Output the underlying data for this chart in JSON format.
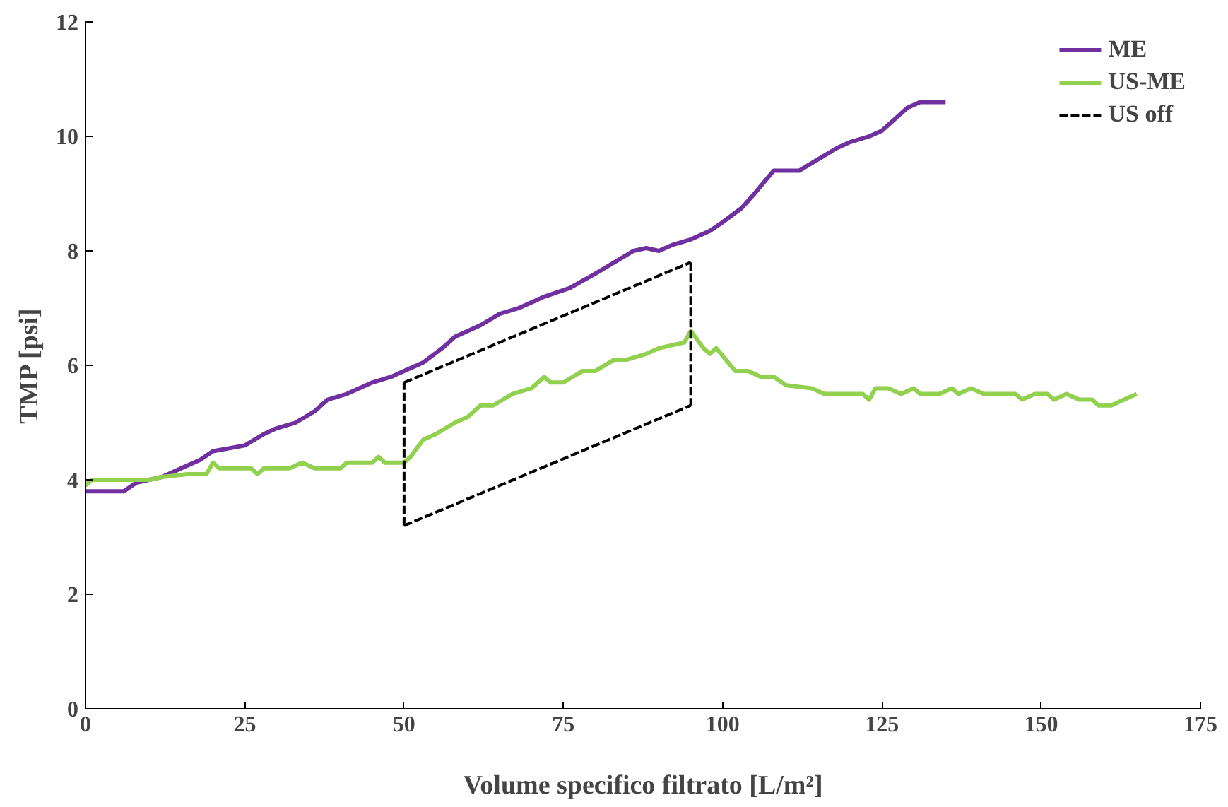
{
  "chart_data": {
    "type": "line",
    "xlabel": "Volume specifico filtrato [L/m²]",
    "ylabel": "TMP [psi]",
    "xlim": [
      0,
      175
    ],
    "xticks": [
      0,
      25,
      50,
      75,
      100,
      125,
      150,
      175
    ],
    "ylim": [
      0,
      12
    ],
    "yticks": [
      0,
      2,
      4,
      6,
      8,
      10,
      12
    ],
    "grid": false,
    "legend": "top right",
    "line_style": "solid",
    "marker": "none",
    "series": [
      {
        "name": "ME",
        "color": "#7030a0",
        "x": [
          0,
          6,
          8,
          12,
          15,
          18,
          20,
          25,
          28,
          30,
          33,
          36,
          38,
          41,
          45,
          48,
          50,
          53,
          56,
          58,
          62,
          65,
          68,
          72,
          76,
          80,
          83,
          86,
          88,
          90,
          92,
          95,
          98,
          100,
          103,
          105,
          108,
          112,
          115,
          118,
          120,
          123,
          125,
          127,
          129,
          131,
          135
        ],
        "values": [
          3.8,
          3.8,
          3.95,
          4.05,
          4.2,
          4.35,
          4.5,
          4.6,
          4.8,
          4.9,
          5.0,
          5.2,
          5.4,
          5.5,
          5.7,
          5.8,
          5.9,
          6.05,
          6.3,
          6.5,
          6.7,
          6.9,
          7.0,
          7.2,
          7.35,
          7.6,
          7.8,
          8.0,
          8.05,
          8.0,
          8.1,
          8.2,
          8.35,
          8.5,
          8.75,
          9.0,
          9.4,
          9.4,
          9.6,
          9.8,
          9.9,
          10.0,
          10.1,
          10.3,
          10.5,
          10.6,
          10.6
        ]
      },
      {
        "name": "US-ME",
        "color": "#92d050",
        "x": [
          0,
          1,
          10,
          12,
          16,
          19,
          20,
          21,
          26,
          27,
          28,
          32,
          34,
          36,
          40,
          41,
          45,
          46,
          47,
          50,
          51,
          53,
          55,
          58,
          60,
          62,
          64,
          67,
          70,
          72,
          73,
          75,
          78,
          80,
          83,
          85,
          88,
          90,
          92,
          94,
          95,
          97,
          98,
          99,
          102,
          104,
          106,
          108,
          110,
          114,
          116,
          122,
          123,
          124,
          126,
          128,
          130,
          131,
          134,
          136,
          137,
          139,
          141,
          146,
          147,
          149,
          151,
          152,
          154,
          156,
          158,
          159,
          161,
          163,
          165
        ],
        "values": [
          3.9,
          4.0,
          4.0,
          4.05,
          4.1,
          4.1,
          4.3,
          4.2,
          4.2,
          4.1,
          4.2,
          4.2,
          4.3,
          4.2,
          4.2,
          4.3,
          4.3,
          4.4,
          4.3,
          4.3,
          4.4,
          4.7,
          4.8,
          5.0,
          5.1,
          5.3,
          5.3,
          5.5,
          5.6,
          5.8,
          5.7,
          5.7,
          5.9,
          5.9,
          6.1,
          6.1,
          6.2,
          6.3,
          6.35,
          6.4,
          6.6,
          6.3,
          6.2,
          6.3,
          5.9,
          5.9,
          5.8,
          5.8,
          5.65,
          5.6,
          5.5,
          5.5,
          5.4,
          5.6,
          5.6,
          5.5,
          5.6,
          5.5,
          5.5,
          5.6,
          5.5,
          5.6,
          5.5,
          5.5,
          5.4,
          5.5,
          5.5,
          5.4,
          5.5,
          5.4,
          5.4,
          5.3,
          5.3,
          5.4,
          5.5
        ]
      },
      {
        "name": "US off",
        "color": "#000000",
        "line_style": "dashed",
        "x": [
          50,
          95
        ],
        "values": [
          5.7,
          7.8
        ]
      },
      {
        "color": "#000000",
        "line_style": "dashed",
        "x": [
          95,
          95
        ],
        "values": [
          7.8,
          5.3
        ]
      },
      {
        "color": "#000000",
        "line_style": "dashed",
        "x": [
          50,
          95
        ],
        "values": [
          3.2,
          5.3
        ]
      },
      {
        "color": "#000000",
        "line_style": "dashed",
        "x": [
          50,
          50
        ],
        "values": [
          3.2,
          5.7
        ]
      }
    ]
  }
}
